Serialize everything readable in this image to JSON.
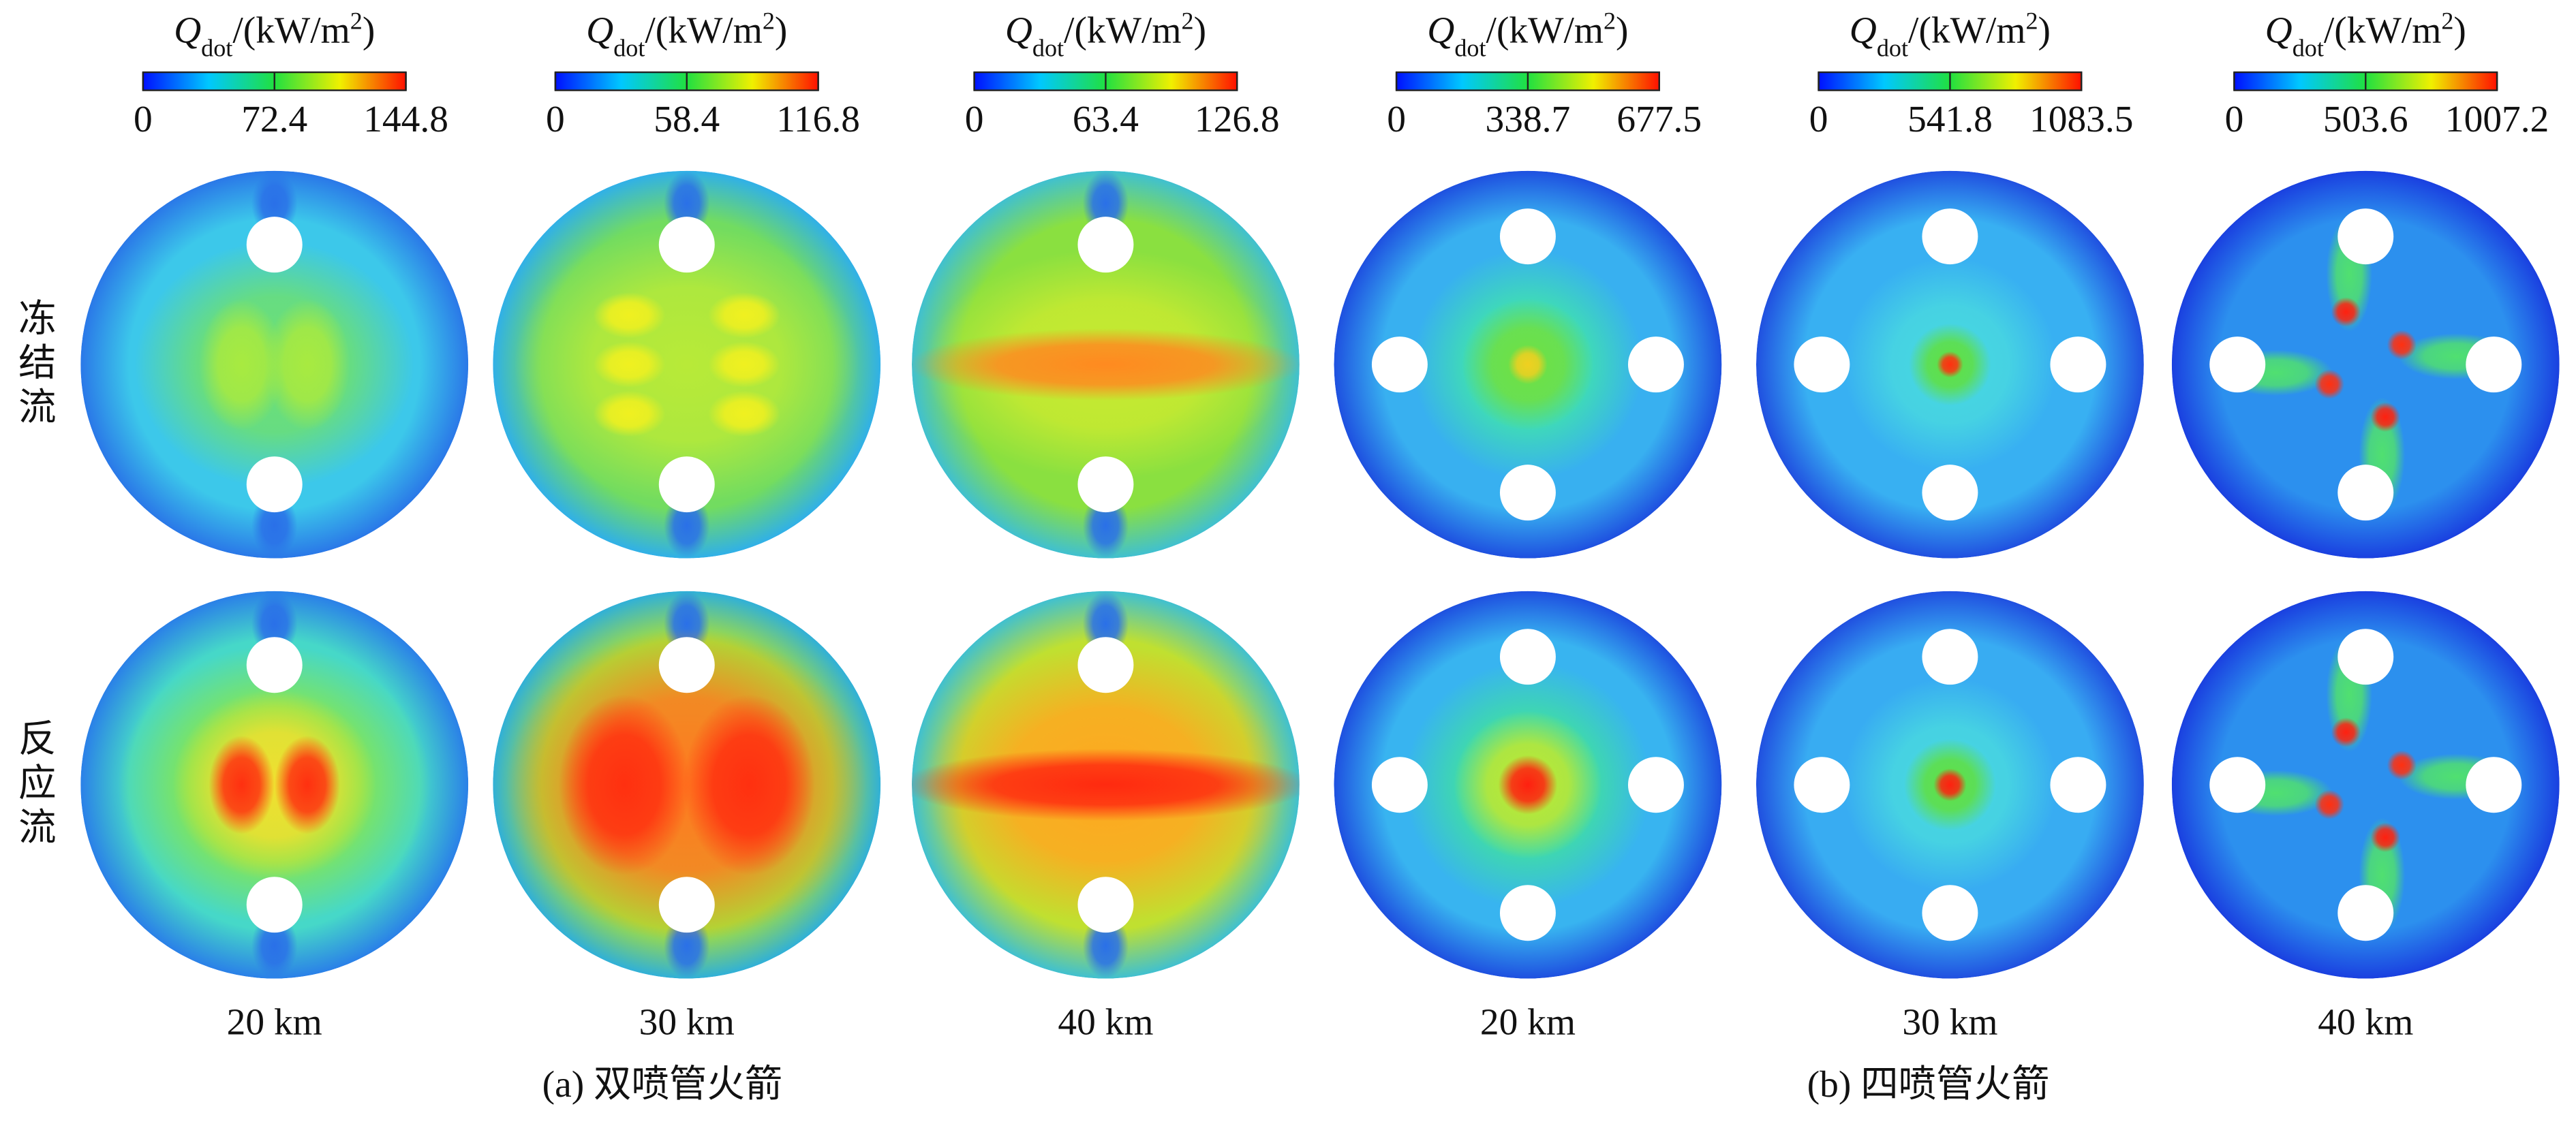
{
  "colorbar_label": {
    "symbol": "Q",
    "subscript": "dot",
    "unit": "/(kW/m",
    "superscript": "2",
    "close": ")"
  },
  "row_labels": [
    "冻结流",
    "反应流"
  ],
  "panels": [
    {
      "altitude": "20 km",
      "colorbar": {
        "range": [
          0,
          144.8
        ],
        "ticks": [
          0,
          72.4,
          144.8
        ]
      }
    },
    {
      "altitude": "30 km",
      "colorbar": {
        "range": [
          0,
          116.8
        ],
        "ticks": [
          0,
          58.4,
          116.8
        ]
      }
    },
    {
      "altitude": "40 km",
      "colorbar": {
        "range": [
          0,
          126.8
        ],
        "ticks": [
          0,
          63.4,
          126.8
        ]
      }
    },
    {
      "altitude": "20 km",
      "colorbar": {
        "range": [
          0,
          677.5
        ],
        "ticks": [
          0,
          338.7,
          677.5
        ]
      }
    },
    {
      "altitude": "30 km",
      "colorbar": {
        "range": [
          0,
          1083.5
        ],
        "ticks": [
          0,
          541.8,
          1083.5
        ]
      }
    },
    {
      "altitude": "40 km",
      "colorbar": {
        "range": [
          0,
          1007.2
        ],
        "ticks": [
          0,
          503.6,
          1007.2
        ]
      }
    }
  ],
  "groups": [
    "(a) 双喷管火箭",
    "(b) 四喷管火箭"
  ]
}
